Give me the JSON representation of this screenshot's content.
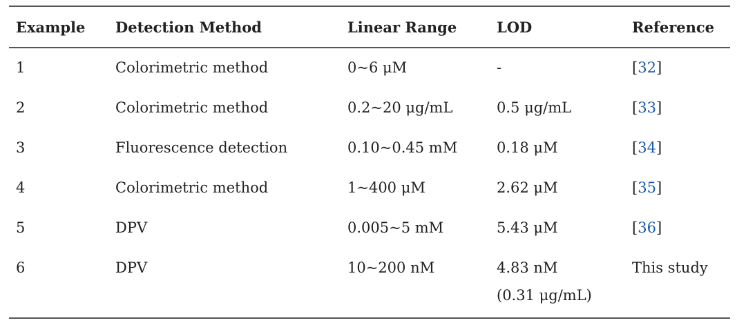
{
  "table": {
    "headers": [
      "Example",
      "Detection Method",
      "Linear Range",
      "LOD",
      "Reference"
    ],
    "rows": [
      {
        "example": "1",
        "method": "Colorimetric method",
        "range": "0~6 μM",
        "lod": "-",
        "lod2": "",
        "ref": "32",
        "ref_text": ""
      },
      {
        "example": "2",
        "method": "Colorimetric method",
        "range": "0.2~20 μg/mL",
        "lod": "0.5 μg/mL",
        "lod2": "",
        "ref": "33",
        "ref_text": ""
      },
      {
        "example": "3",
        "method": "Fluorescence detection",
        "range": "0.10~0.45 mM",
        "lod": "0.18 μM",
        "lod2": "",
        "ref": "34",
        "ref_text": ""
      },
      {
        "example": "4",
        "method": "Colorimetric method",
        "range": "1~400 μM",
        "lod": "2.62 μM",
        "lod2": "",
        "ref": "35",
        "ref_text": ""
      },
      {
        "example": "5",
        "method": "DPV",
        "range": "0.005~5 mM",
        "lod": "5.43 μM",
        "lod2": "",
        "ref": "36",
        "ref_text": ""
      },
      {
        "example": "6",
        "method": "DPV",
        "range": "10~200 nM",
        "lod": "4.83 nM",
        "lod2": "(0.31 μg/mL)",
        "ref": "",
        "ref_text": "This study"
      }
    ]
  },
  "colors": {
    "link": "#1a5aa8",
    "rule": "#555555",
    "text": "#222222"
  }
}
